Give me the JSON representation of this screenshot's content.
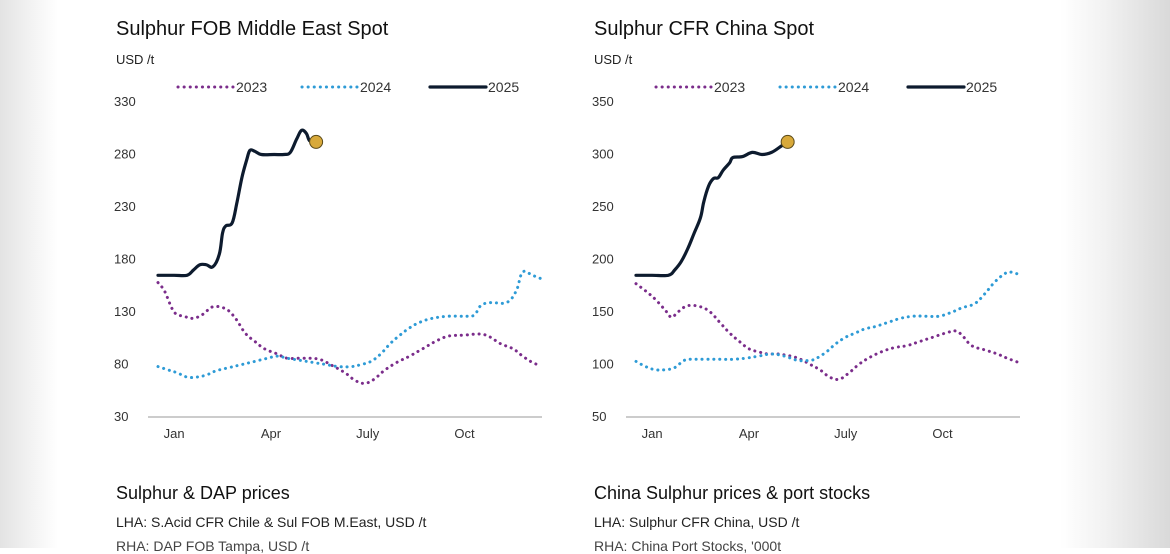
{
  "chart_data": [
    {
      "type": "line",
      "title": "Sulphur FOB Middle East Spot",
      "ylabel": "USD /t",
      "ylim": [
        30,
        330
      ],
      "yticks": [
        30,
        80,
        130,
        180,
        230,
        280,
        330
      ],
      "xlim": [
        1,
        12.9
      ],
      "xticks": [
        {
          "label": "Jan",
          "x": 1.5
        },
        {
          "label": "Apr",
          "x": 4.5
        },
        {
          "label": "July",
          "x": 7.5
        },
        {
          "label": "Oct",
          "x": 10.5
        }
      ],
      "legend": "top",
      "series": [
        {
          "name": "2023",
          "style": "dotted",
          "color": "#7b2d8b",
          "points": [
            [
              1.0,
              158
            ],
            [
              1.2,
              150
            ],
            [
              1.5,
              130
            ],
            [
              1.8,
              126
            ],
            [
              2.1,
              124
            ],
            [
              2.4,
              128
            ],
            [
              2.7,
              135
            ],
            [
              3.1,
              133
            ],
            [
              3.4,
              124
            ],
            [
              3.7,
              110
            ],
            [
              4.0,
              102
            ],
            [
              4.3,
              95
            ],
            [
              4.7,
              90
            ],
            [
              5.0,
              86
            ],
            [
              5.5,
              86
            ],
            [
              6.0,
              85
            ],
            [
              6.4,
              79
            ],
            [
              6.8,
              72
            ],
            [
              7.1,
              65
            ],
            [
              7.4,
              62
            ],
            [
              7.7,
              66
            ],
            [
              8.0,
              74
            ],
            [
              8.4,
              82
            ],
            [
              8.8,
              88
            ],
            [
              9.2,
              95
            ],
            [
              9.6,
              102
            ],
            [
              10.0,
              107
            ],
            [
              10.5,
              108
            ],
            [
              11.0,
              109
            ],
            [
              11.3,
              106
            ],
            [
              11.6,
              100
            ],
            [
              12.0,
              95
            ],
            [
              12.3,
              88
            ],
            [
              12.6,
              82
            ],
            [
              12.85,
              79
            ]
          ]
        },
        {
          "name": "2024",
          "style": "dotted",
          "color": "#2e9bd6",
          "points": [
            [
              1.0,
              78
            ],
            [
              1.3,
              75
            ],
            [
              1.6,
              72
            ],
            [
              1.9,
              68
            ],
            [
              2.2,
              68
            ],
            [
              2.5,
              70
            ],
            [
              2.8,
              74
            ],
            [
              3.2,
              77
            ],
            [
              3.6,
              80
            ],
            [
              4.0,
              83
            ],
            [
              4.4,
              86
            ],
            [
              4.7,
              88
            ],
            [
              5.0,
              86
            ],
            [
              5.4,
              84
            ],
            [
              5.8,
              82
            ],
            [
              6.2,
              80
            ],
            [
              6.6,
              78
            ],
            [
              7.0,
              78
            ],
            [
              7.3,
              80
            ],
            [
              7.6,
              83
            ],
            [
              7.9,
              90
            ],
            [
              8.2,
              100
            ],
            [
              8.5,
              108
            ],
            [
              8.8,
              115
            ],
            [
              9.1,
              120
            ],
            [
              9.5,
              124
            ],
            [
              10.0,
              126
            ],
            [
              10.5,
              126
            ],
            [
              10.8,
              127
            ],
            [
              11.0,
              136
            ],
            [
              11.3,
              139
            ],
            [
              11.8,
              139
            ],
            [
              12.1,
              150
            ],
            [
              12.3,
              168
            ],
            [
              12.6,
              165
            ],
            [
              12.85,
              162
            ]
          ]
        },
        {
          "name": "2025",
          "style": "solid",
          "color": "#0d1b2e",
          "points": [
            [
              1.0,
              165
            ],
            [
              1.5,
              165
            ],
            [
              1.9,
              165
            ],
            [
              2.1,
              170
            ],
            [
              2.3,
              175
            ],
            [
              2.5,
              175
            ],
            [
              2.7,
              173
            ],
            [
              2.9,
              185
            ],
            [
              3.0,
              205
            ],
            [
              3.1,
              212
            ],
            [
              3.3,
              215
            ],
            [
              3.45,
              235
            ],
            [
              3.6,
              258
            ],
            [
              3.75,
              275
            ],
            [
              3.85,
              284
            ],
            [
              4.0,
              283
            ],
            [
              4.2,
              280
            ],
            [
              4.6,
              280
            ],
            [
              4.9,
              280
            ],
            [
              5.1,
              282
            ],
            [
              5.3,
              295
            ],
            [
              5.45,
              303
            ],
            [
              5.6,
              300
            ],
            [
              5.7,
              293
            ],
            [
              5.9,
              292
            ]
          ]
        }
      ],
      "endpoint": {
        "x": 5.9,
        "y": 292,
        "color": "#d8a93a"
      }
    },
    {
      "type": "line",
      "title": "Sulphur CFR China Spot",
      "ylabel": "USD /t",
      "ylim": [
        50,
        350
      ],
      "yticks": [
        50,
        100,
        150,
        200,
        250,
        300,
        350
      ],
      "xlim": [
        1,
        12.9
      ],
      "xticks": [
        {
          "label": "Jan",
          "x": 1.5
        },
        {
          "label": "Apr",
          "x": 4.5
        },
        {
          "label": "July",
          "x": 7.5
        },
        {
          "label": "Oct",
          "x": 10.5
        }
      ],
      "legend": "top",
      "series": [
        {
          "name": "2023",
          "style": "dotted",
          "color": "#7b2d8b",
          "points": [
            [
              1.0,
              177
            ],
            [
              1.3,
              170
            ],
            [
              1.6,
              162
            ],
            [
              1.9,
              152
            ],
            [
              2.1,
              145
            ],
            [
              2.3,
              150
            ],
            [
              2.6,
              156
            ],
            [
              3.0,
              155
            ],
            [
              3.3,
              150
            ],
            [
              3.6,
              140
            ],
            [
              3.9,
              130
            ],
            [
              4.2,
              122
            ],
            [
              4.5,
              115
            ],
            [
              4.8,
              112
            ],
            [
              5.1,
              110
            ],
            [
              5.4,
              110
            ],
            [
              5.8,
              108
            ],
            [
              6.1,
              105
            ],
            [
              6.4,
              100
            ],
            [
              6.7,
              95
            ],
            [
              7.0,
              88
            ],
            [
              7.3,
              86
            ],
            [
              7.6,
              92
            ],
            [
              7.9,
              100
            ],
            [
              8.2,
              106
            ],
            [
              8.6,
              112
            ],
            [
              9.0,
              116
            ],
            [
              9.4,
              118
            ],
            [
              9.8,
              122
            ],
            [
              10.2,
              126
            ],
            [
              10.6,
              130
            ],
            [
              10.9,
              132
            ],
            [
              11.1,
              128
            ],
            [
              11.4,
              118
            ],
            [
              11.8,
              114
            ],
            [
              12.2,
              110
            ],
            [
              12.5,
              106
            ],
            [
              12.85,
              102
            ]
          ]
        },
        {
          "name": "2024",
          "style": "dotted",
          "color": "#2e9bd6",
          "points": [
            [
              1.0,
              103
            ],
            [
              1.3,
              98
            ],
            [
              1.6,
              95
            ],
            [
              1.9,
              95
            ],
            [
              2.2,
              97
            ],
            [
              2.5,
              104
            ],
            [
              2.8,
              105
            ],
            [
              3.2,
              105
            ],
            [
              3.6,
              105
            ],
            [
              4.0,
              105
            ],
            [
              4.4,
              106
            ],
            [
              4.8,
              108
            ],
            [
              5.2,
              110
            ],
            [
              5.6,
              108
            ],
            [
              6.0,
              104
            ],
            [
              6.4,
              104
            ],
            [
              6.6,
              106
            ],
            [
              6.9,
              112
            ],
            [
              7.2,
              120
            ],
            [
              7.5,
              126
            ],
            [
              7.8,
              130
            ],
            [
              8.1,
              134
            ],
            [
              8.4,
              136
            ],
            [
              8.8,
              140
            ],
            [
              9.2,
              144
            ],
            [
              9.6,
              146
            ],
            [
              10.0,
              146
            ],
            [
              10.4,
              146
            ],
            [
              10.8,
              150
            ],
            [
              11.1,
              154
            ],
            [
              11.5,
              158
            ],
            [
              11.8,
              167
            ],
            [
              12.1,
              178
            ],
            [
              12.4,
              186
            ],
            [
              12.6,
              188
            ],
            [
              12.85,
              186
            ]
          ]
        },
        {
          "name": "2025",
          "style": "solid",
          "color": "#0d1b2e",
          "points": [
            [
              1.0,
              185
            ],
            [
              1.5,
              185
            ],
            [
              2.0,
              185
            ],
            [
              2.2,
              190
            ],
            [
              2.4,
              198
            ],
            [
              2.6,
              210
            ],
            [
              2.8,
              225
            ],
            [
              3.0,
              240
            ],
            [
              3.1,
              255
            ],
            [
              3.25,
              270
            ],
            [
              3.4,
              277
            ],
            [
              3.55,
              278
            ],
            [
              3.7,
              285
            ],
            [
              3.9,
              292
            ],
            [
              4.0,
              297
            ],
            [
              4.3,
              298
            ],
            [
              4.6,
              302
            ],
            [
              4.9,
              300
            ],
            [
              5.2,
              302
            ],
            [
              5.5,
              308
            ],
            [
              5.7,
              312
            ]
          ]
        }
      ],
      "endpoint": {
        "x": 5.7,
        "y": 312,
        "color": "#d8a93a"
      }
    }
  ],
  "below": {
    "left": {
      "title": "Sulphur & DAP prices",
      "sub": "LHA: S.Acid CFR Chile & Sul FOB M.East, USD /t",
      "sub2": "RHA: DAP FOB Tampa, USD /t"
    },
    "right": {
      "title": "China Sulphur prices & port stocks",
      "sub": "LHA: Sulphur CFR China, USD /t",
      "sub2": "RHA: China Port Stocks, '000t"
    }
  }
}
